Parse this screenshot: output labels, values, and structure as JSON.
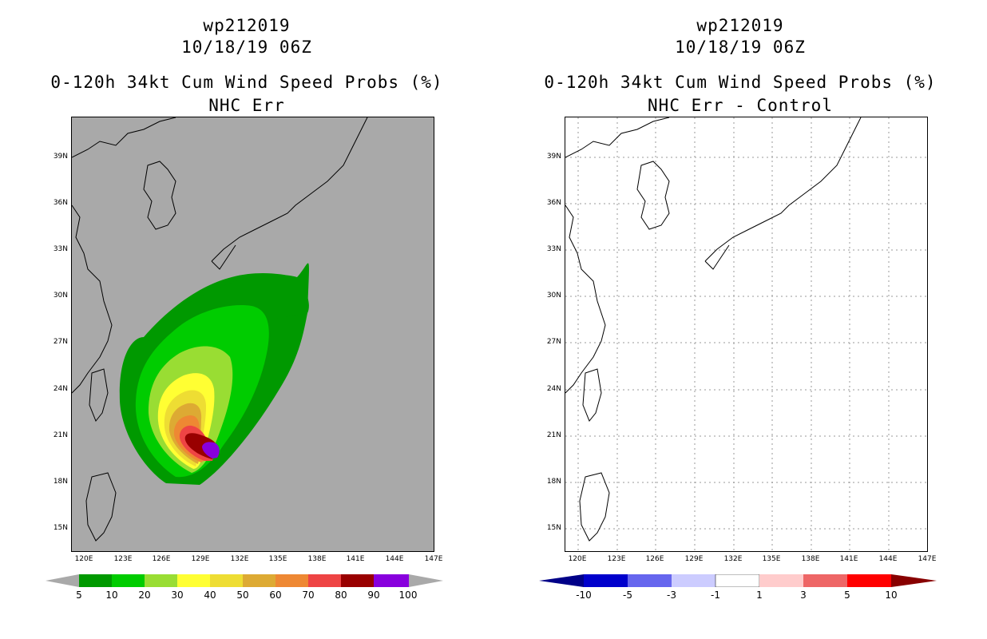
{
  "left": {
    "title_line1": "wp212019",
    "title_line2": "10/18/19 06Z",
    "title_line3": "0-120h 34kt Cum Wind Speed Probs (%)",
    "title_line4": "NHC Err",
    "colorbar": {
      "labels": [
        "5",
        "10",
        "20",
        "30",
        "40",
        "50",
        "60",
        "70",
        "80",
        "90",
        "100"
      ],
      "colors": [
        "#009900",
        "#00cc00",
        "#99dd33",
        "#ffff33",
        "#eedd33",
        "#ddaa33",
        "#ee8833",
        "#ee4444",
        "#990000",
        "#8800dd"
      ],
      "under_color": "#a9a9a9",
      "over_color": "#a9a9a9"
    }
  },
  "right": {
    "title_line1": "wp212019",
    "title_line2": "10/18/19 06Z",
    "title_line3": "0-120h 34kt Cum Wind Speed Probs (%)",
    "title_line4": "NHC Err - Control",
    "colorbar": {
      "labels": [
        "-10",
        "-5",
        "-3",
        "-1",
        "1",
        "3",
        "5",
        "10"
      ],
      "colors": [
        "#0000cc",
        "#6666ee",
        "#ccccff",
        "#ffffff",
        "#ffcccc",
        "#ee6666",
        "#ff0000"
      ],
      "under_color": "#000088",
      "over_color": "#880000"
    }
  },
  "axes": {
    "lat_labels": [
      "39N",
      "36N",
      "33N",
      "30N",
      "27N",
      "24N",
      "21N",
      "18N",
      "15N"
    ],
    "lat_values": [
      39,
      36,
      33,
      30,
      27,
      24,
      21,
      18,
      15
    ],
    "lon_labels": [
      "120E",
      "123E",
      "126E",
      "129E",
      "132E",
      "135E",
      "138E",
      "141E",
      "144E",
      "147E"
    ],
    "lon_values": [
      120,
      123,
      126,
      129,
      132,
      135,
      138,
      141,
      144,
      147
    ],
    "lon_range": [
      119.8,
      146.4
    ],
    "lat_range": [
      13.6,
      41.6
    ]
  }
}
